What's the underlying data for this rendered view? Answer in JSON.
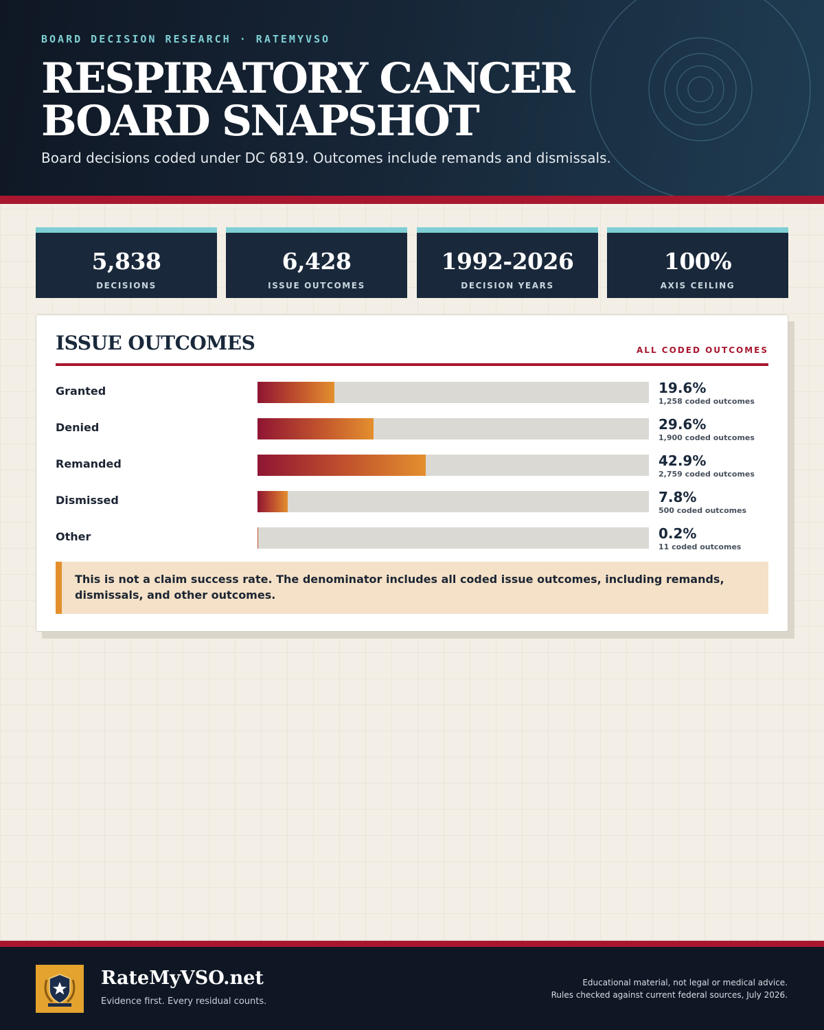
{
  "header": {
    "kicker": "BOARD DECISION RESEARCH · RATEMYVSO",
    "title_line1": "RESPIRATORY CANCER",
    "title_line2": "BOARD SNAPSHOT",
    "subtitle": "Board decisions coded under DC 6819. Outcomes include remands and dismissals."
  },
  "stats": [
    {
      "value": "5,838",
      "label": "DECISIONS"
    },
    {
      "value": "6,428",
      "label": "ISSUE OUTCOMES"
    },
    {
      "value": "1992-2026",
      "label": "DECISION YEARS"
    },
    {
      "value": "100%",
      "label": "AXIS CEILING"
    }
  ],
  "panel": {
    "title": "ISSUE OUTCOMES",
    "tag": "ALL CODED OUTCOMES",
    "note": "This is not a claim success rate. The denominator includes all coded issue outcomes, including remands, dismissals, and other outcomes."
  },
  "chart_data": {
    "type": "bar",
    "orientation": "horizontal",
    "title": "ISSUE OUTCOMES",
    "xlim": [
      0,
      100
    ],
    "categories": [
      "Granted",
      "Denied",
      "Remanded",
      "Dismissed",
      "Other"
    ],
    "values": [
      19.6,
      29.6,
      42.9,
      7.8,
      0.2
    ],
    "value_labels": [
      "19.6%",
      "29.6%",
      "42.9%",
      "7.8%",
      "0.2%"
    ],
    "counts": [
      "1,258 coded outcomes",
      "1,900 coded outcomes",
      "2,759 coded outcomes",
      "500 coded outcomes",
      "11 coded outcomes"
    ]
  },
  "footer": {
    "brand": "RateMyVSO.net",
    "tagline": "Evidence first. Every residual counts.",
    "disclaimer_line1": "Educational material, not legal or medical advice.",
    "disclaimer_line2": "Rules checked against current federal sources, July 2026."
  },
  "colors": {
    "navy": "#19283a",
    "accent_red": "#a8172f",
    "accent_teal": "#7fcfd4",
    "bar_start": "#8f1533",
    "bar_end": "#e38f2e",
    "logo_gold": "#e3a32e"
  },
  "icons": {
    "logo": "shield-star-emblem-icon"
  }
}
